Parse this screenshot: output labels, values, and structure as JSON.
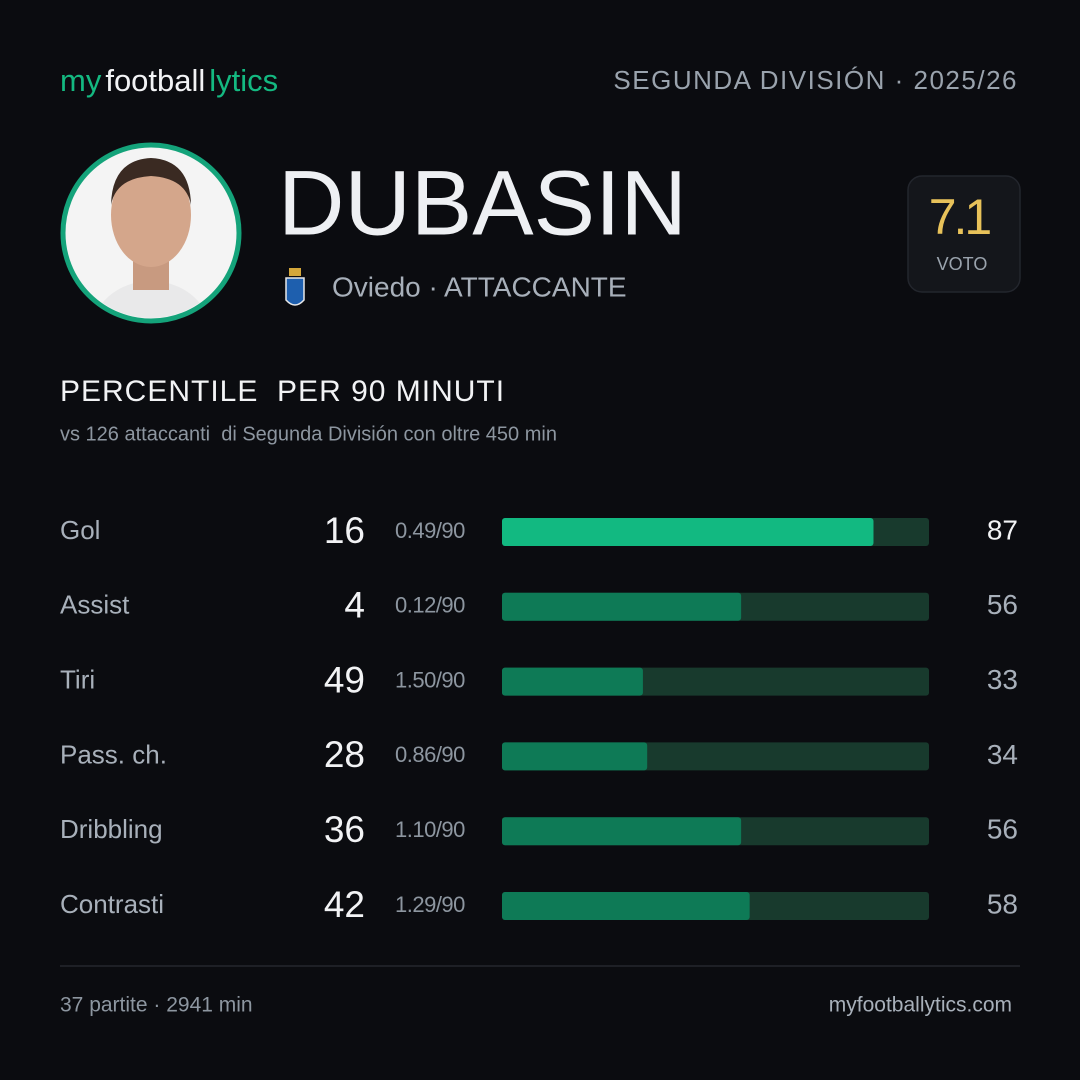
{
  "header": {
    "brand": [
      "my",
      "football",
      "lytics"
    ],
    "brand_colors": [
      "#14b981",
      "#f2f3f5",
      "#14b981"
    ],
    "competition": "SEGUNDA DIVISIÓN · 2025/26"
  },
  "player": {
    "name": "DUBASIN",
    "team_role": "Oviedo · ATTACCANTE",
    "rating": "7.1",
    "rating_label": "VOTO"
  },
  "section": {
    "title": "PERCENTILE  PER 90 MINUTI",
    "subtitle": "vs 126 attaccanti  di Segunda División con oltre 450 min"
  },
  "percentile_range": [
    0,
    100
  ],
  "rows": [
    {
      "label": "Gol",
      "total": 16,
      "per90": "0.49/90",
      "percentile": 87,
      "color": "#12b981"
    },
    {
      "label": "Assist",
      "total": 4,
      "per90": "0.12/90",
      "percentile": 56,
      "color": "#0e7a56"
    },
    {
      "label": "Tiri",
      "total": 49,
      "per90": "1.50/90",
      "percentile": 33,
      "color": "#0e7a56"
    },
    {
      "label": "Pass. ch.",
      "total": 28,
      "per90": "0.86/90",
      "percentile": 34,
      "color": "#0e7a56"
    },
    {
      "label": "Dribbling",
      "total": 36,
      "per90": "1.10/90",
      "percentile": 56,
      "color": "#0e7a56"
    },
    {
      "label": "Contrasti",
      "total": 42,
      "per90": "1.29/90",
      "percentile": 58,
      "color": "#0e7a56"
    }
  ],
  "footer": {
    "left": "37 partite · 2941 min",
    "right": "myfootballytics.com"
  }
}
